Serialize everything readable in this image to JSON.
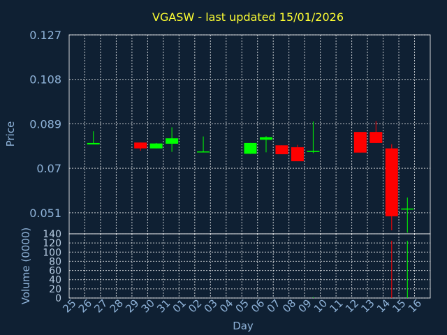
{
  "colors": {
    "background": "#0f2033",
    "title": "#ffff33",
    "axis_text": "#8fb3d9",
    "up": "#00ff00",
    "down": "#ff0000",
    "grid": "#ffffff"
  },
  "chart_data": {
    "type": "candlestick",
    "title": "VGASW - last updated 15/01/2026",
    "xlabel": "Day",
    "ylabel": "Price",
    "volume_label": "Volume (0000)",
    "categories": [
      "25",
      "26",
      "27",
      "28",
      "29",
      "30",
      "31",
      "01",
      "02",
      "03",
      "04",
      "05",
      "06",
      "07",
      "08",
      "09",
      "10",
      "11",
      "12",
      "13",
      "14",
      "15",
      "16"
    ],
    "price_ticks": [
      "0.127",
      "0.108",
      "0.089",
      "0.07",
      "0.051"
    ],
    "price_range": [
      0.042,
      0.127
    ],
    "volume_ticks": [
      "140",
      "120",
      "100",
      "80",
      "60",
      "40",
      "20",
      "0"
    ],
    "volume_range": [
      0,
      140
    ],
    "grid": true,
    "candles": [
      {
        "day": "26",
        "open": 0.0802,
        "high": 0.0858,
        "low": 0.0802,
        "close": 0.0808,
        "volume": 0
      },
      {
        "day": "29",
        "open": 0.081,
        "high": 0.081,
        "low": 0.0775,
        "close": 0.0785,
        "volume": 0
      },
      {
        "day": "30",
        "open": 0.0785,
        "high": 0.0808,
        "low": 0.0785,
        "close": 0.0806,
        "volume": 0
      },
      {
        "day": "31",
        "open": 0.0805,
        "high": 0.0875,
        "low": 0.077,
        "close": 0.0828,
        "volume": 0
      },
      {
        "day": "02",
        "open": 0.0772,
        "high": 0.0836,
        "low": 0.077,
        "close": 0.0772,
        "volume": 0
      },
      {
        "day": "05",
        "open": 0.0762,
        "high": 0.0808,
        "low": 0.0762,
        "close": 0.0808,
        "volume": 0
      },
      {
        "day": "06",
        "open": 0.0822,
        "high": 0.0837,
        "low": 0.0768,
        "close": 0.0833,
        "volume": 0
      },
      {
        "day": "07",
        "open": 0.0798,
        "high": 0.0798,
        "low": 0.076,
        "close": 0.076,
        "volume": 0
      },
      {
        "day": "08",
        "open": 0.079,
        "high": 0.08,
        "low": 0.073,
        "close": 0.073,
        "volume": 0
      },
      {
        "day": "09",
        "open": 0.077,
        "high": 0.09,
        "low": 0.0765,
        "close": 0.0775,
        "volume": 2
      },
      {
        "day": "12",
        "open": 0.0855,
        "high": 0.0855,
        "low": 0.0767,
        "close": 0.0767,
        "volume": 0
      },
      {
        "day": "13",
        "open": 0.0855,
        "high": 0.0902,
        "low": 0.0808,
        "close": 0.0808,
        "volume": 0
      },
      {
        "day": "14",
        "open": 0.0785,
        "high": 0.0803,
        "low": 0.0435,
        "close": 0.0495,
        "volume": 125
      },
      {
        "day": "15",
        "open": 0.0528,
        "high": 0.0575,
        "low": 0.0425,
        "close": 0.0528,
        "volume": 125
      }
    ]
  }
}
